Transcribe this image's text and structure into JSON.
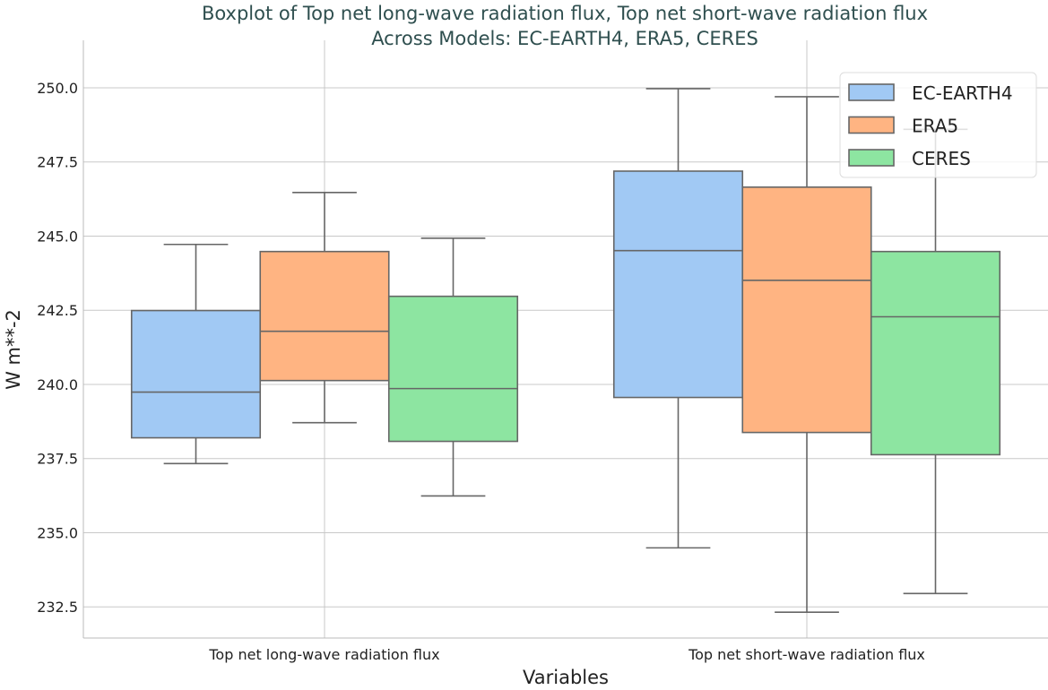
{
  "chart_data": {
    "type": "boxplot",
    "title_line1": "Boxplot of Top net long-wave radiation flux, Top net short-wave radiation flux",
    "title_line2": "Across Models: EC-EARTH4, ERA5, CERES",
    "xlabel": "Variables",
    "ylabel": "W m**-2",
    "ylim": [
      231.45,
      251.6
    ],
    "yticks": [
      "232.5",
      "235.0",
      "237.5",
      "240.0",
      "242.5",
      "245.0",
      "247.5",
      "250.0"
    ],
    "categories": [
      "Top net long-wave radiation flux",
      "Top net short-wave radiation flux"
    ],
    "legend_position": "top-right",
    "series": [
      {
        "name": "EC-EARTH4",
        "color": "#a1c9f4",
        "boxes": [
          {
            "whislo": 237.33,
            "q1": 238.2,
            "med": 239.74,
            "q3": 242.49,
            "whishi": 244.72
          },
          {
            "whislo": 234.49,
            "q1": 239.56,
            "med": 244.51,
            "q3": 247.19,
            "whishi": 249.97
          }
        ]
      },
      {
        "name": "ERA5",
        "color": "#ffb482",
        "boxes": [
          {
            "whislo": 238.71,
            "q1": 240.13,
            "med": 241.79,
            "q3": 244.48,
            "whishi": 246.47
          },
          {
            "whislo": 232.32,
            "q1": 238.38,
            "med": 243.51,
            "q3": 246.65,
            "whishi": 249.7
          }
        ]
      },
      {
        "name": "CERES",
        "color": "#8de5a1",
        "boxes": [
          {
            "whislo": 236.24,
            "q1": 238.08,
            "med": 239.86,
            "q3": 242.97,
            "whishi": 244.93
          },
          {
            "whislo": 232.95,
            "q1": 237.63,
            "med": 242.28,
            "q3": 244.48,
            "whishi": 248.6
          }
        ]
      }
    ]
  }
}
